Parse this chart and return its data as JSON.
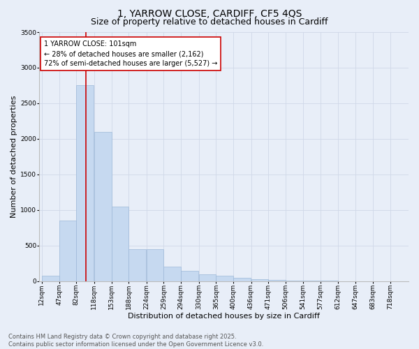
{
  "title_line1": "1, YARROW CLOSE, CARDIFF, CF5 4QS",
  "title_line2": "Size of property relative to detached houses in Cardiff",
  "xlabel": "Distribution of detached houses by size in Cardiff",
  "ylabel": "Number of detached properties",
  "bins": [
    12,
    47,
    82,
    118,
    153,
    188,
    224,
    259,
    294,
    330,
    365,
    400,
    436,
    471,
    506,
    541,
    577,
    612,
    647,
    683,
    718
  ],
  "bar_heights": [
    75,
    850,
    2750,
    2100,
    1050,
    450,
    450,
    200,
    150,
    100,
    75,
    50,
    30,
    20,
    10,
    5,
    3,
    2,
    1,
    1
  ],
  "bar_color": "#c6d9f0",
  "bar_edge_color": "#9db8d8",
  "vline_x": 101,
  "vline_color": "#cc0000",
  "annotation_text": "1 YARROW CLOSE: 101sqm\n← 28% of detached houses are smaller (2,162)\n72% of semi-detached houses are larger (5,527) →",
  "annotation_box_color": "#ffffff",
  "annotation_box_edge": "#cc0000",
  "ylim": [
    0,
    3500
  ],
  "yticks": [
    0,
    500,
    1000,
    1500,
    2000,
    2500,
    3000,
    3500
  ],
  "grid_color": "#d0d8e8",
  "background_color": "#e8eef8",
  "footer_line1": "Contains HM Land Registry data © Crown copyright and database right 2025.",
  "footer_line2": "Contains public sector information licensed under the Open Government Licence v3.0.",
  "title_fontsize": 10,
  "subtitle_fontsize": 9,
  "axis_label_fontsize": 8,
  "tick_fontsize": 6.5,
  "annotation_fontsize": 7,
  "footer_fontsize": 6
}
